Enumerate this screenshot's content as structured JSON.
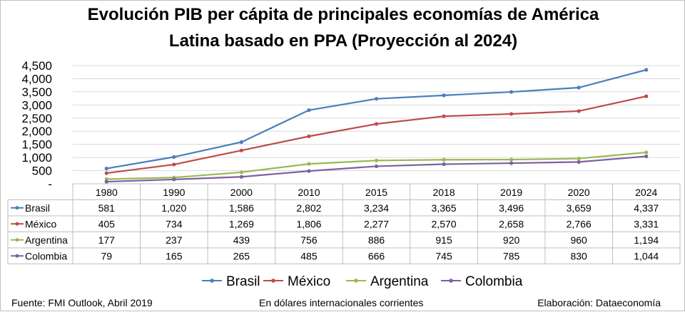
{
  "title_line1": "Evolución PIB per cápita de principales economías de América",
  "title_line2": "Latina basado en PPA (Proyección al 2024)",
  "footer": {
    "source": "Fuente: FMI Outlook, Abril 2019",
    "units": "En dólares internacionales corrientes",
    "credit": "Elaboración: Dataeconomía"
  },
  "chart_data": {
    "type": "line",
    "title": "Evolución PIB per cápita de principales economías de América Latina basado en PPA (Proyección al 2024)",
    "categories": [
      "1980",
      "1990",
      "2000",
      "2010",
      "2015",
      "2018",
      "2019",
      "2020",
      "2024"
    ],
    "yticks": [
      "-",
      "500",
      "1,000",
      "1,500",
      "2,000",
      "2,500",
      "3,000",
      "3,500",
      "4,000",
      "4,500"
    ],
    "ylim": [
      0,
      4500
    ],
    "grid": true,
    "legend_position": "bottom",
    "data_table": true,
    "series": [
      {
        "name": "Brasil",
        "color": "#4a7ebb",
        "values": [
          581,
          1020,
          1586,
          2802,
          3234,
          3365,
          3496,
          3659,
          4337
        ],
        "labels": [
          "581",
          "1,020",
          "1,586",
          "2,802",
          "3,234",
          "3,365",
          "3,496",
          "3,659",
          "4,337"
        ]
      },
      {
        "name": "México",
        "color": "#be4b48",
        "values": [
          405,
          734,
          1269,
          1806,
          2277,
          2570,
          2658,
          2766,
          3331
        ],
        "labels": [
          "405",
          "734",
          "1,269",
          "1,806",
          "2,277",
          "2,570",
          "2,658",
          "2,766",
          "3,331"
        ]
      },
      {
        "name": "Argentina",
        "color": "#98b954",
        "values": [
          177,
          237,
          439,
          756,
          886,
          915,
          920,
          960,
          1194
        ],
        "labels": [
          "177",
          "237",
          "439",
          "756",
          "886",
          "915",
          "920",
          "960",
          "1,194"
        ]
      },
      {
        "name": "Colombia",
        "color": "#7d60a0",
        "values": [
          79,
          165,
          265,
          485,
          666,
          745,
          785,
          830,
          1044
        ],
        "labels": [
          "79",
          "165",
          "265",
          "485",
          "666",
          "745",
          "785",
          "830",
          "1,044"
        ]
      }
    ]
  }
}
